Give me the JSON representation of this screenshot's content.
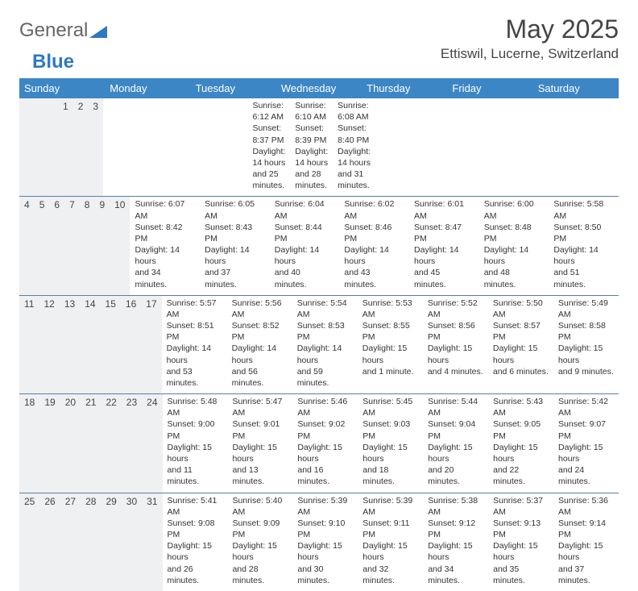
{
  "logo": {
    "text1": "General",
    "text2": "Blue"
  },
  "title": "May 2025",
  "location": "Ettiswil, Lucerne, Switzerland",
  "colors": {
    "header_bg": "#3d86c6",
    "header_text": "#ffffff",
    "num_bg": "#eef0f1",
    "week_border": "#5a7ea6",
    "logo_accent": "#2f78c2"
  },
  "day_headers": [
    "Sunday",
    "Monday",
    "Tuesday",
    "Wednesday",
    "Thursday",
    "Friday",
    "Saturday"
  ],
  "weeks": [
    {
      "nums": [
        "",
        "",
        "",
        "",
        "1",
        "2",
        "3"
      ],
      "cells": [
        null,
        null,
        null,
        null,
        {
          "sunrise": "Sunrise: 6:12 AM",
          "sunset": "Sunset: 8:37 PM",
          "day1": "Daylight: 14 hours",
          "day2": "and 25 minutes."
        },
        {
          "sunrise": "Sunrise: 6:10 AM",
          "sunset": "Sunset: 8:39 PM",
          "day1": "Daylight: 14 hours",
          "day2": "and 28 minutes."
        },
        {
          "sunrise": "Sunrise: 6:08 AM",
          "sunset": "Sunset: 8:40 PM",
          "day1": "Daylight: 14 hours",
          "day2": "and 31 minutes."
        }
      ]
    },
    {
      "nums": [
        "4",
        "5",
        "6",
        "7",
        "8",
        "9",
        "10"
      ],
      "cells": [
        {
          "sunrise": "Sunrise: 6:07 AM",
          "sunset": "Sunset: 8:42 PM",
          "day1": "Daylight: 14 hours",
          "day2": "and 34 minutes."
        },
        {
          "sunrise": "Sunrise: 6:05 AM",
          "sunset": "Sunset: 8:43 PM",
          "day1": "Daylight: 14 hours",
          "day2": "and 37 minutes."
        },
        {
          "sunrise": "Sunrise: 6:04 AM",
          "sunset": "Sunset: 8:44 PM",
          "day1": "Daylight: 14 hours",
          "day2": "and 40 minutes."
        },
        {
          "sunrise": "Sunrise: 6:02 AM",
          "sunset": "Sunset: 8:46 PM",
          "day1": "Daylight: 14 hours",
          "day2": "and 43 minutes."
        },
        {
          "sunrise": "Sunrise: 6:01 AM",
          "sunset": "Sunset: 8:47 PM",
          "day1": "Daylight: 14 hours",
          "day2": "and 45 minutes."
        },
        {
          "sunrise": "Sunrise: 6:00 AM",
          "sunset": "Sunset: 8:48 PM",
          "day1": "Daylight: 14 hours",
          "day2": "and 48 minutes."
        },
        {
          "sunrise": "Sunrise: 5:58 AM",
          "sunset": "Sunset: 8:50 PM",
          "day1": "Daylight: 14 hours",
          "day2": "and 51 minutes."
        }
      ]
    },
    {
      "nums": [
        "11",
        "12",
        "13",
        "14",
        "15",
        "16",
        "17"
      ],
      "cells": [
        {
          "sunrise": "Sunrise: 5:57 AM",
          "sunset": "Sunset: 8:51 PM",
          "day1": "Daylight: 14 hours",
          "day2": "and 53 minutes."
        },
        {
          "sunrise": "Sunrise: 5:56 AM",
          "sunset": "Sunset: 8:52 PM",
          "day1": "Daylight: 14 hours",
          "day2": "and 56 minutes."
        },
        {
          "sunrise": "Sunrise: 5:54 AM",
          "sunset": "Sunset: 8:53 PM",
          "day1": "Daylight: 14 hours",
          "day2": "and 59 minutes."
        },
        {
          "sunrise": "Sunrise: 5:53 AM",
          "sunset": "Sunset: 8:55 PM",
          "day1": "Daylight: 15 hours",
          "day2": "and 1 minute."
        },
        {
          "sunrise": "Sunrise: 5:52 AM",
          "sunset": "Sunset: 8:56 PM",
          "day1": "Daylight: 15 hours",
          "day2": "and 4 minutes."
        },
        {
          "sunrise": "Sunrise: 5:50 AM",
          "sunset": "Sunset: 8:57 PM",
          "day1": "Daylight: 15 hours",
          "day2": "and 6 minutes."
        },
        {
          "sunrise": "Sunrise: 5:49 AM",
          "sunset": "Sunset: 8:58 PM",
          "day1": "Daylight: 15 hours",
          "day2": "and 9 minutes."
        }
      ]
    },
    {
      "nums": [
        "18",
        "19",
        "20",
        "21",
        "22",
        "23",
        "24"
      ],
      "cells": [
        {
          "sunrise": "Sunrise: 5:48 AM",
          "sunset": "Sunset: 9:00 PM",
          "day1": "Daylight: 15 hours",
          "day2": "and 11 minutes."
        },
        {
          "sunrise": "Sunrise: 5:47 AM",
          "sunset": "Sunset: 9:01 PM",
          "day1": "Daylight: 15 hours",
          "day2": "and 13 minutes."
        },
        {
          "sunrise": "Sunrise: 5:46 AM",
          "sunset": "Sunset: 9:02 PM",
          "day1": "Daylight: 15 hours",
          "day2": "and 16 minutes."
        },
        {
          "sunrise": "Sunrise: 5:45 AM",
          "sunset": "Sunset: 9:03 PM",
          "day1": "Daylight: 15 hours",
          "day2": "and 18 minutes."
        },
        {
          "sunrise": "Sunrise: 5:44 AM",
          "sunset": "Sunset: 9:04 PM",
          "day1": "Daylight: 15 hours",
          "day2": "and 20 minutes."
        },
        {
          "sunrise": "Sunrise: 5:43 AM",
          "sunset": "Sunset: 9:05 PM",
          "day1": "Daylight: 15 hours",
          "day2": "and 22 minutes."
        },
        {
          "sunrise": "Sunrise: 5:42 AM",
          "sunset": "Sunset: 9:07 PM",
          "day1": "Daylight: 15 hours",
          "day2": "and 24 minutes."
        }
      ]
    },
    {
      "nums": [
        "25",
        "26",
        "27",
        "28",
        "29",
        "30",
        "31"
      ],
      "cells": [
        {
          "sunrise": "Sunrise: 5:41 AM",
          "sunset": "Sunset: 9:08 PM",
          "day1": "Daylight: 15 hours",
          "day2": "and 26 minutes."
        },
        {
          "sunrise": "Sunrise: 5:40 AM",
          "sunset": "Sunset: 9:09 PM",
          "day1": "Daylight: 15 hours",
          "day2": "and 28 minutes."
        },
        {
          "sunrise": "Sunrise: 5:39 AM",
          "sunset": "Sunset: 9:10 PM",
          "day1": "Daylight: 15 hours",
          "day2": "and 30 minutes."
        },
        {
          "sunrise": "Sunrise: 5:39 AM",
          "sunset": "Sunset: 9:11 PM",
          "day1": "Daylight: 15 hours",
          "day2": "and 32 minutes."
        },
        {
          "sunrise": "Sunrise: 5:38 AM",
          "sunset": "Sunset: 9:12 PM",
          "day1": "Daylight: 15 hours",
          "day2": "and 34 minutes."
        },
        {
          "sunrise": "Sunrise: 5:37 AM",
          "sunset": "Sunset: 9:13 PM",
          "day1": "Daylight: 15 hours",
          "day2": "and 35 minutes."
        },
        {
          "sunrise": "Sunrise: 5:36 AM",
          "sunset": "Sunset: 9:14 PM",
          "day1": "Daylight: 15 hours",
          "day2": "and 37 minutes."
        }
      ]
    }
  ]
}
